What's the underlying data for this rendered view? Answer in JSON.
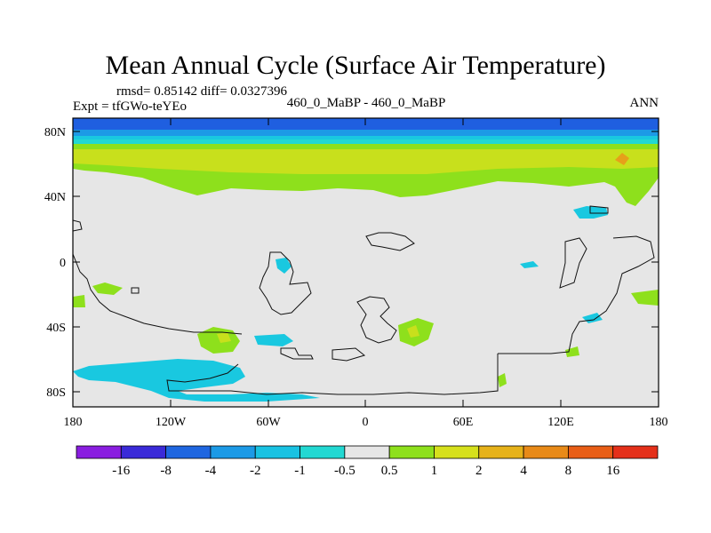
{
  "title": "Mean Annual Cycle (Surface Air Temperature)",
  "stats": "rmsd= 0.85142 diff= 0.0327396",
  "experiment": "Expt = tfGWo-teYEo",
  "comparison": "460_0_MaBP - 460_0_MaBP",
  "season": "ANN",
  "lat_ticks": [
    "80N",
    "40N",
    "0",
    "40S",
    "80S"
  ],
  "lon_ticks": [
    "180",
    "120W",
    "60W",
    "0",
    "60E",
    "120E",
    "180"
  ],
  "colorbar": {
    "labels": [
      "-16",
      "-8",
      "-4",
      "-2",
      "-1",
      "-0.5",
      "0.5",
      "1",
      "2",
      "4",
      "8",
      "16"
    ],
    "colors": [
      "#8a1ee0",
      "#3a2ad8",
      "#1f66e0",
      "#1c9ae6",
      "#19c2e2",
      "#22d8d2",
      "#e6e6e6",
      "#8ee01c",
      "#d6e01c",
      "#e6b21a",
      "#e88a18",
      "#e85e16",
      "#e4301a"
    ]
  },
  "field_colors": {
    "background": "#e6e6e6",
    "deep_blue": "#1f5fe0",
    "mid_blue": "#1c9ae6",
    "cyan": "#19c8e0",
    "light_cyan": "#22d8d2",
    "green": "#8ee01c",
    "yellow_green": "#c8e01c",
    "orange": "#e6a01a"
  }
}
